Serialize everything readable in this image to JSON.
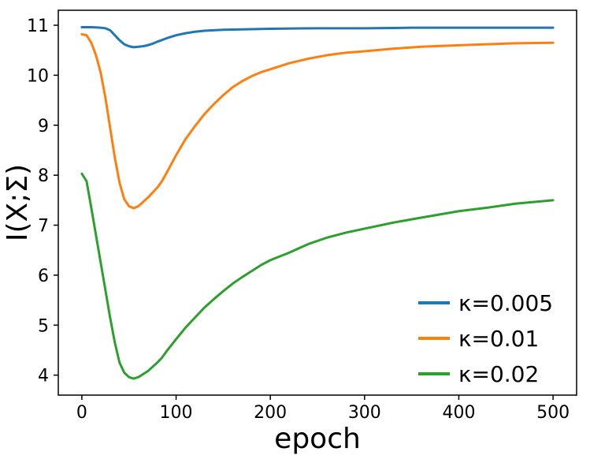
{
  "chart_data": {
    "type": "line",
    "title": "",
    "xlabel": "epoch",
    "ylabel": "I(X;Σ)",
    "xlim": [
      -25,
      525
    ],
    "ylim": [
      3.6,
      11.3
    ],
    "xticks": [
      0,
      100,
      200,
      300,
      400,
      500
    ],
    "yticks": [
      4,
      5,
      6,
      7,
      8,
      9,
      10,
      11
    ],
    "grid": false,
    "legend_position": "bottom-right",
    "series": [
      {
        "name": "κ=0.005",
        "color": "#1f77b4",
        "x": [
          0,
          10,
          20,
          25,
          30,
          35,
          40,
          45,
          50,
          55,
          60,
          65,
          70,
          75,
          80,
          90,
          100,
          110,
          120,
          130,
          140,
          150,
          175,
          200,
          250,
          300,
          350,
          400,
          450,
          500
        ],
        "y": [
          10.96,
          10.96,
          10.95,
          10.94,
          10.9,
          10.8,
          10.7,
          10.62,
          10.58,
          10.56,
          10.57,
          10.58,
          10.6,
          10.63,
          10.67,
          10.74,
          10.8,
          10.84,
          10.87,
          10.89,
          10.9,
          10.91,
          10.92,
          10.93,
          10.94,
          10.94,
          10.95,
          10.95,
          10.95,
          10.95
        ]
      },
      {
        "name": "κ=0.01",
        "color": "#ff7f0e",
        "x": [
          0,
          5,
          10,
          15,
          20,
          25,
          30,
          35,
          40,
          45,
          50,
          55,
          60,
          70,
          80,
          85,
          90,
          100,
          110,
          120,
          130,
          140,
          150,
          160,
          170,
          180,
          190,
          200,
          220,
          240,
          260,
          280,
          300,
          330,
          360,
          400,
          430,
          460,
          500
        ],
        "y": [
          10.82,
          10.8,
          10.65,
          10.4,
          10.05,
          9.55,
          8.95,
          8.35,
          7.85,
          7.52,
          7.38,
          7.34,
          7.38,
          7.55,
          7.75,
          7.88,
          8.05,
          8.4,
          8.72,
          8.98,
          9.22,
          9.42,
          9.6,
          9.76,
          9.88,
          9.98,
          10.06,
          10.12,
          10.24,
          10.33,
          10.4,
          10.45,
          10.48,
          10.53,
          10.57,
          10.6,
          10.62,
          10.64,
          10.65
        ]
      },
      {
        "name": "κ=0.02",
        "color": "#2ca02c",
        "x": [
          0,
          5,
          10,
          15,
          20,
          25,
          30,
          35,
          40,
          45,
          50,
          55,
          60,
          70,
          80,
          85,
          90,
          100,
          110,
          120,
          130,
          140,
          150,
          160,
          170,
          180,
          190,
          200,
          220,
          240,
          260,
          280,
          300,
          330,
          360,
          400,
          430,
          460,
          500
        ],
        "y": [
          8.03,
          7.88,
          7.35,
          6.8,
          6.25,
          5.7,
          5.15,
          4.65,
          4.25,
          4.05,
          3.96,
          3.93,
          3.96,
          4.08,
          4.25,
          4.35,
          4.48,
          4.72,
          4.95,
          5.15,
          5.35,
          5.52,
          5.68,
          5.83,
          5.96,
          6.08,
          6.2,
          6.3,
          6.45,
          6.62,
          6.75,
          6.85,
          6.93,
          7.05,
          7.15,
          7.28,
          7.35,
          7.43,
          7.5
        ]
      }
    ]
  }
}
